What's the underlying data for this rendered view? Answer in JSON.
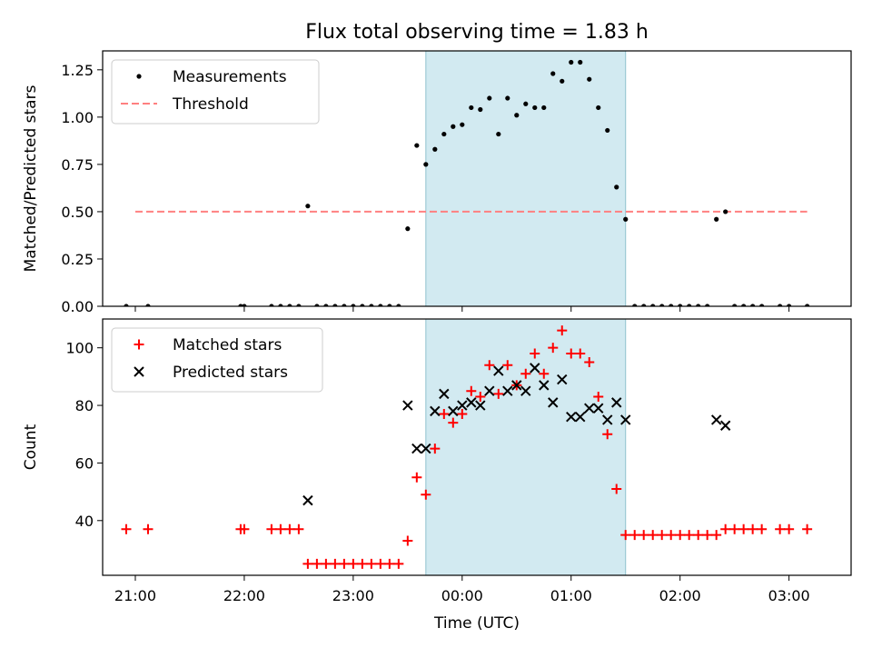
{
  "chart_data": {
    "title": "Flux total observing time = 1.83 h",
    "x_axis": {
      "label": "Time (UTC)",
      "tick_labels": [
        "21:00",
        "22:00",
        "23:00",
        "00:00",
        "01:00",
        "02:00",
        "03:00"
      ],
      "tick_hours": [
        0,
        1,
        2,
        3,
        4,
        5,
        6
      ],
      "origin": "21:00",
      "range_hours": [
        -0.3,
        6.57
      ]
    },
    "shaded_interval": {
      "start": "23:40",
      "end": "01:30",
      "color": "#add8e6"
    },
    "panels": [
      {
        "type": "scatter",
        "ylabel": "Matched/Predicted stars",
        "ylim": [
          0,
          1.35
        ],
        "ytick_labels": [
          "0.00",
          "0.25",
          "0.50",
          "0.75",
          "1.00",
          "1.25"
        ],
        "yticks": [
          0,
          0.25,
          0.5,
          0.75,
          1.0,
          1.25
        ],
        "legend_position": "upper-left",
        "threshold": {
          "name": "Threshold",
          "value": 0.5,
          "x_range": [
            "21:00",
            "03:10"
          ],
          "color": "#ff8080",
          "style": "dashed"
        },
        "series": [
          {
            "name": "Measurements",
            "marker": "dot",
            "color": "#000000",
            "points": [
              [
                "20:55",
                0.0
              ],
              [
                "21:07",
                0.0
              ],
              [
                "21:58",
                0.0
              ],
              [
                "22:00",
                0.0
              ],
              [
                "22:15",
                0.0
              ],
              [
                "22:20",
                0.0
              ],
              [
                "22:25",
                0.0
              ],
              [
                "22:30",
                0.0
              ],
              [
                "22:35",
                0.53
              ],
              [
                "22:40",
                0.0
              ],
              [
                "22:45",
                0.0
              ],
              [
                "22:50",
                0.0
              ],
              [
                "22:55",
                0.0
              ],
              [
                "23:00",
                0.0
              ],
              [
                "23:05",
                0.0
              ],
              [
                "23:10",
                0.0
              ],
              [
                "23:15",
                0.0
              ],
              [
                "23:20",
                0.0
              ],
              [
                "23:25",
                0.0
              ],
              [
                "23:30",
                0.41
              ],
              [
                "23:35",
                0.85
              ],
              [
                "23:40",
                0.75
              ],
              [
                "23:45",
                0.83
              ],
              [
                "23:50",
                0.91
              ],
              [
                "23:55",
                0.95
              ],
              [
                "00:00",
                0.96
              ],
              [
                "00:05",
                1.05
              ],
              [
                "00:10",
                1.04
              ],
              [
                "00:15",
                1.1
              ],
              [
                "00:20",
                0.91
              ],
              [
                "00:25",
                1.1
              ],
              [
                "00:30",
                1.01
              ],
              [
                "00:35",
                1.07
              ],
              [
                "00:40",
                1.05
              ],
              [
                "00:45",
                1.05
              ],
              [
                "00:50",
                1.23
              ],
              [
                "00:55",
                1.19
              ],
              [
                "01:00",
                1.29
              ],
              [
                "01:05",
                1.29
              ],
              [
                "01:10",
                1.2
              ],
              [
                "01:15",
                1.05
              ],
              [
                "01:20",
                0.93
              ],
              [
                "01:25",
                0.63
              ],
              [
                "01:30",
                0.46
              ],
              [
                "01:35",
                0.0
              ],
              [
                "01:40",
                0.0
              ],
              [
                "01:45",
                0.0
              ],
              [
                "01:50",
                0.0
              ],
              [
                "01:55",
                0.0
              ],
              [
                "02:00",
                0.0
              ],
              [
                "02:05",
                0.0
              ],
              [
                "02:10",
                0.0
              ],
              [
                "02:15",
                0.0
              ],
              [
                "02:20",
                0.46
              ],
              [
                "02:25",
                0.5
              ],
              [
                "02:30",
                0.0
              ],
              [
                "02:35",
                0.0
              ],
              [
                "02:40",
                0.0
              ],
              [
                "02:45",
                0.0
              ],
              [
                "02:55",
                0.0
              ],
              [
                "03:00",
                0.0
              ],
              [
                "03:10",
                0.0
              ]
            ]
          }
        ]
      },
      {
        "type": "scatter",
        "ylabel": "Count",
        "ylim": [
          21,
          110
        ],
        "ytick_labels": [
          "40",
          "60",
          "80",
          "100"
        ],
        "yticks": [
          40,
          60,
          80,
          100
        ],
        "legend_position": "upper-left",
        "series": [
          {
            "name": "Matched stars",
            "marker": "plus",
            "color": "#ff0000",
            "points": [
              [
                "20:55",
                37
              ],
              [
                "21:07",
                37
              ],
              [
                "21:58",
                37
              ],
              [
                "22:00",
                37
              ],
              [
                "22:15",
                37
              ],
              [
                "22:20",
                37
              ],
              [
                "22:25",
                37
              ],
              [
                "22:30",
                37
              ],
              [
                "22:35",
                25
              ],
              [
                "22:40",
                25
              ],
              [
                "22:45",
                25
              ],
              [
                "22:50",
                25
              ],
              [
                "22:55",
                25
              ],
              [
                "23:00",
                25
              ],
              [
                "23:05",
                25
              ],
              [
                "23:10",
                25
              ],
              [
                "23:15",
                25
              ],
              [
                "23:20",
                25
              ],
              [
                "23:25",
                25
              ],
              [
                "23:30",
                33
              ],
              [
                "23:35",
                55
              ],
              [
                "23:40",
                49
              ],
              [
                "23:45",
                65
              ],
              [
                "23:50",
                77
              ],
              [
                "23:55",
                74
              ],
              [
                "00:00",
                77
              ],
              [
                "00:05",
                85
              ],
              [
                "00:10",
                83
              ],
              [
                "00:15",
                94
              ],
              [
                "00:20",
                84
              ],
              [
                "00:25",
                94
              ],
              [
                "00:30",
                87
              ],
              [
                "00:35",
                91
              ],
              [
                "00:40",
                98
              ],
              [
                "00:45",
                91
              ],
              [
                "00:50",
                100
              ],
              [
                "00:55",
                106
              ],
              [
                "01:00",
                98
              ],
              [
                "01:05",
                98
              ],
              [
                "01:10",
                95
              ],
              [
                "01:15",
                83
              ],
              [
                "01:20",
                70
              ],
              [
                "01:25",
                51
              ],
              [
                "01:30",
                35
              ],
              [
                "01:35",
                35
              ],
              [
                "01:40",
                35
              ],
              [
                "01:45",
                35
              ],
              [
                "01:50",
                35
              ],
              [
                "01:55",
                35
              ],
              [
                "02:00",
                35
              ],
              [
                "02:05",
                35
              ],
              [
                "02:10",
                35
              ],
              [
                "02:15",
                35
              ],
              [
                "02:20",
                35
              ],
              [
                "02:25",
                37
              ],
              [
                "02:30",
                37
              ],
              [
                "02:35",
                37
              ],
              [
                "02:40",
                37
              ],
              [
                "02:45",
                37
              ],
              [
                "02:55",
                37
              ],
              [
                "03:00",
                37
              ],
              [
                "03:10",
                37
              ]
            ]
          },
          {
            "name": "Predicted stars",
            "marker": "x",
            "color": "#000000",
            "points": [
              [
                "22:35",
                47
              ],
              [
                "23:30",
                80
              ],
              [
                "23:35",
                65
              ],
              [
                "23:40",
                65
              ],
              [
                "23:45",
                78
              ],
              [
                "23:50",
                84
              ],
              [
                "23:55",
                78
              ],
              [
                "00:00",
                80
              ],
              [
                "00:05",
                81
              ],
              [
                "00:10",
                80
              ],
              [
                "00:15",
                85
              ],
              [
                "00:20",
                92
              ],
              [
                "00:25",
                85
              ],
              [
                "00:30",
                87
              ],
              [
                "00:35",
                85
              ],
              [
                "00:40",
                93
              ],
              [
                "00:45",
                87
              ],
              [
                "00:50",
                81
              ],
              [
                "00:55",
                89
              ],
              [
                "01:00",
                76
              ],
              [
                "01:05",
                76
              ],
              [
                "01:10",
                79
              ],
              [
                "01:15",
                79
              ],
              [
                "01:20",
                75
              ],
              [
                "01:25",
                81
              ],
              [
                "01:30",
                75
              ],
              [
                "02:20",
                75
              ],
              [
                "02:25",
                73
              ]
            ]
          }
        ]
      }
    ]
  }
}
